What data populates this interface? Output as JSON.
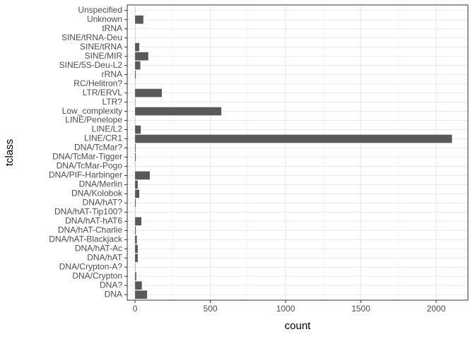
{
  "chart_data": {
    "type": "bar",
    "orientation": "horizontal",
    "x_label": "count",
    "y_label": "tclass",
    "categories": [
      "DNA",
      "DNA?",
      "DNA/Crypton",
      "DNA/Crypton-A?",
      "DNA/hAT",
      "DNA/hAT-Ac",
      "DNA/hAT-Blackjack",
      "DNA/hAT-Charlie",
      "DNA/hAT-hAT6",
      "DNA/hAT-Tip100?",
      "DNA/hAT?",
      "DNA/Kolobok",
      "DNA/Merlin",
      "DNA/PIF-Harbinger",
      "DNA/TcMar-Pogo",
      "DNA/TcMar-Tigger",
      "DNA/TcMar?",
      "LINE/CR1",
      "LINE/L2",
      "LINE/Penelope",
      "Low_complexity",
      "LTR?",
      "LTR/ERVL",
      "RC/Helitron?",
      "rRNA",
      "SINE/5S-Deu-L2",
      "SINE/MIR",
      "SINE/tRNA",
      "SINE/tRNA-Deu",
      "tRNA",
      "Unknown",
      "Unspecified"
    ],
    "values": [
      80,
      45,
      8,
      2,
      18,
      18,
      12,
      5,
      42,
      1,
      5,
      28,
      18,
      98,
      1,
      5,
      4,
      2105,
      38,
      1,
      573,
      2,
      178,
      1,
      5,
      35,
      88,
      28,
      1,
      1,
      55,
      1
    ],
    "color": "#595959",
    "xlim": [
      -52,
      2211
    ],
    "xticks": [
      0,
      500,
      1000,
      1500,
      2000
    ],
    "grid": true
  }
}
